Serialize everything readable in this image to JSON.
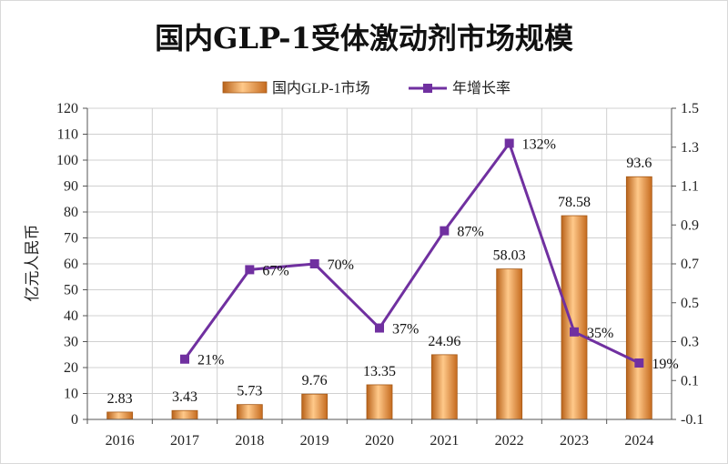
{
  "chart_data": {
    "type": "bar+line",
    "title": "国内GLP-1受体激动剂市场规模",
    "ylabel": "亿元人民币",
    "categories": [
      "2016",
      "2017",
      "2018",
      "2019",
      "2020",
      "2021",
      "2022",
      "2023",
      "2024"
    ],
    "series": [
      {
        "name": "国内GLP-1市场",
        "type": "bar",
        "axis": "left",
        "values": [
          2.83,
          3.43,
          5.73,
          9.76,
          13.35,
          24.96,
          58.03,
          78.58,
          93.6
        ],
        "labels": [
          "2.83",
          "3.43",
          "5.73",
          "9.76",
          "13.35",
          "24.96",
          "58.03",
          "78.58",
          "93.6"
        ],
        "color": "#F39A3C"
      },
      {
        "name": "年增长率",
        "type": "line",
        "axis": "right",
        "values": [
          null,
          0.21,
          0.67,
          0.7,
          0.37,
          0.87,
          1.32,
          0.35,
          0.19
        ],
        "labels": [
          "",
          "21%",
          "67%",
          "70%",
          "37%",
          "87%",
          "132%",
          "35%",
          "19%"
        ],
        "color": "#7030A0"
      }
    ],
    "y_left": {
      "min": 0,
      "max": 120,
      "step": 10,
      "ticks": [
        "0",
        "10",
        "20",
        "30",
        "40",
        "50",
        "60",
        "70",
        "80",
        "90",
        "100",
        "110",
        "120"
      ]
    },
    "y_right": {
      "min": -0.1,
      "max": 1.5,
      "step": 0.2,
      "ticks": [
        "-0.1",
        "0.1",
        "0.3",
        "0.5",
        "0.7",
        "0.9",
        "1.1",
        "1.3",
        "1.5"
      ]
    },
    "grid": true,
    "legend": "top-center"
  }
}
